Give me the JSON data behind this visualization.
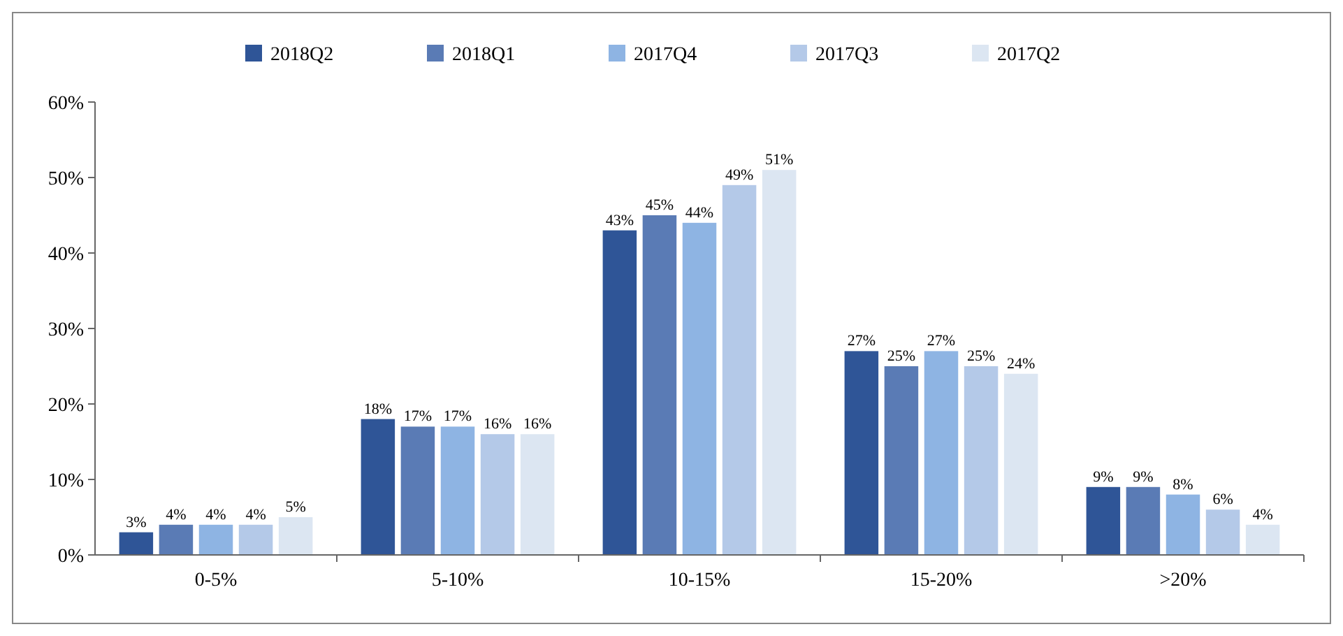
{
  "chart_data": {
    "type": "bar",
    "categories": [
      "0-5%",
      "5-10%",
      "10-15%",
      "15-20%",
      ">20%"
    ],
    "series": [
      {
        "name": "2018Q2",
        "color": "#2f5597",
        "values": [
          3,
          18,
          43,
          27,
          9
        ],
        "value_labels": [
          "3%",
          "18%",
          "43%",
          "27%",
          "9%"
        ]
      },
      {
        "name": "2018Q1",
        "color": "#5a7bb5",
        "values": [
          4,
          17,
          45,
          25,
          9
        ],
        "value_labels": [
          "4%",
          "17%",
          "45%",
          "25%",
          "9%"
        ]
      },
      {
        "name": "2017Q4",
        "color": "#8eb4e3",
        "values": [
          4,
          17,
          44,
          27,
          8
        ],
        "value_labels": [
          "4%",
          "17%",
          "44%",
          "27%",
          "8%"
        ]
      },
      {
        "name": "2017Q3",
        "color": "#b4c9e8",
        "values": [
          4,
          16,
          49,
          25,
          6
        ],
        "value_labels": [
          "4%",
          "16%",
          "49%",
          "25%",
          "6%"
        ]
      },
      {
        "name": "2017Q2",
        "color": "#dce6f2",
        "values": [
          5,
          16,
          51,
          24,
          4
        ],
        "value_labels": [
          "5%",
          "16%",
          "51%",
          "24%",
          "4%"
        ]
      }
    ],
    "ylim": [
      0,
      60
    ],
    "yticks": [
      {
        "value": 0,
        "label": "0%"
      },
      {
        "value": 10,
        "label": "10%"
      },
      {
        "value": 20,
        "label": "20%"
      },
      {
        "value": 30,
        "label": "30%"
      },
      {
        "value": 40,
        "label": "40%"
      },
      {
        "value": 50,
        "label": "50%"
      },
      {
        "value": 60,
        "label": "60%"
      }
    ],
    "grid": false,
    "legend": "top"
  }
}
